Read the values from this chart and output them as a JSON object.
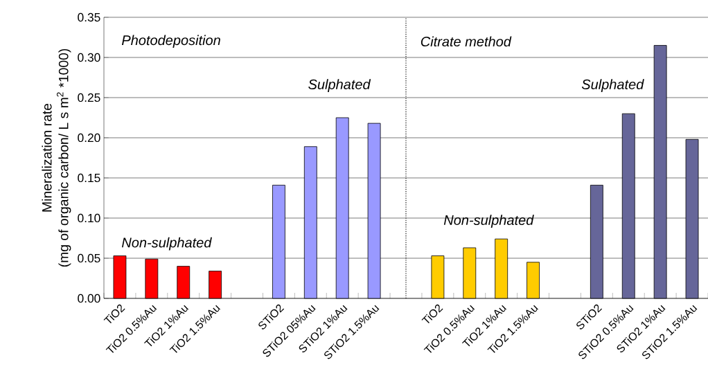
{
  "chart_data": {
    "type": "bar",
    "ylabel": "Mineralization rate\n(mg of organic carbon/ L s m$^{2}$ *1000)",
    "categories": [
      "TiO2",
      "TiO2 0.5%Au",
      "TiO2 1%Au",
      "TiO2 1.5%Au",
      null,
      "STiO2",
      "STiO2 05%Au",
      "STiO2 1%Au",
      "STiO2 1.5%Au",
      null,
      "TiO2",
      "TiO2 0.5%Au",
      "TiO2 1%Au",
      "TiO2 1.5%Au",
      null,
      "STiO2",
      "STiO2 0.5%Au",
      "STiO2 1%Au",
      "STiO2 1.5%Au"
    ],
    "values": [
      0.053,
      0.049,
      0.04,
      0.034,
      null,
      0.141,
      0.189,
      0.225,
      0.218,
      null,
      0.053,
      0.063,
      0.074,
      0.045,
      null,
      0.141,
      0.23,
      0.315,
      0.198
    ],
    "colors": [
      "#ff0000",
      "#ff0000",
      "#ff0000",
      "#ff0000",
      null,
      "#9999ff",
      "#9999ff",
      "#9999ff",
      "#9999ff",
      null,
      "#ffcc00",
      "#ffcc00",
      "#ffcc00",
      "#ffcc00",
      null,
      "#666699",
      "#666699",
      "#666699",
      "#666699"
    ],
    "ylim": [
      0,
      0.35
    ],
    "yticks": [
      {
        "value": 0,
        "label": "0.00"
      },
      {
        "value": 0.05,
        "label": "0.05"
      },
      {
        "value": 0.1,
        "label": "0.10"
      },
      {
        "value": 0.15,
        "label": "0.15"
      },
      {
        "value": 0.2,
        "label": "0.20"
      },
      {
        "value": 0.25,
        "label": "0.25"
      },
      {
        "value": 0.3,
        "label": "0.30"
      },
      {
        "value": 0.35,
        "label": "0.35"
      }
    ],
    "grid": "y",
    "annotations": [
      "Photodeposition",
      "Citrate method",
      "Non-sulphated",
      "Sulphated",
      "Non-sulphated",
      "Sulphated"
    ]
  }
}
